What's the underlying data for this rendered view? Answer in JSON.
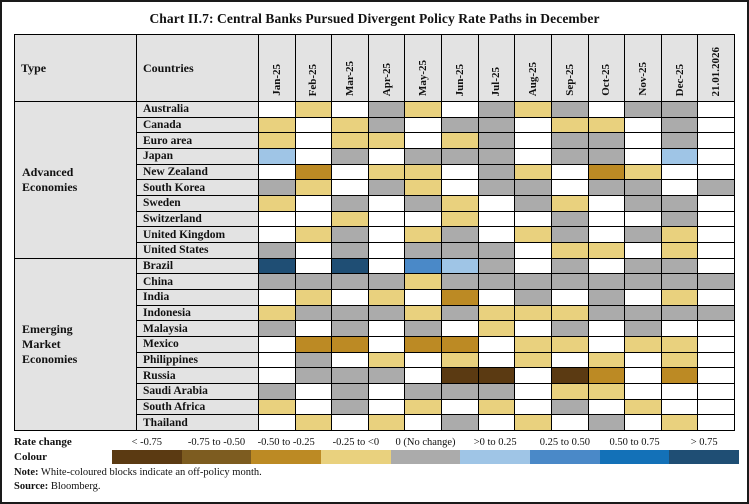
{
  "title": "Chart II.7: Central Banks Pursued Divergent Policy Rate Paths in December",
  "table": {
    "corner_headers": [
      "Type",
      "Countries"
    ]
  },
  "chart_data": {
    "type": "heatmap",
    "title": "Chart II.7: Central Banks Pursued Divergent Policy Rate Paths in December",
    "columns": [
      "Jan-25",
      "Feb-25",
      "Mar-25",
      "Apr-25",
      "May-25",
      "Jun-25",
      "Jul-25",
      "Aug-25",
      "Sep-25",
      "Oct-25",
      "Nov-25",
      "Dec-25",
      "21.01.2026"
    ],
    "cell_code_meaning": {
      "off": "off-policy month (white)",
      "0": "0 (No change)",
      "-1": "-0.25 to <0",
      "-2": "-0.50 to -0.25",
      "-3": "-0.75 to -0.50",
      "-4": "< -0.75",
      "+1": ">0 to 0.25",
      "+2": "0.25 to 0.50",
      "+3": "0.50 to 0.75",
      "+4": "> 0.75"
    },
    "legend_bins": [
      {
        "code": "-4",
        "label": "< -0.75",
        "color": "#5B3A12"
      },
      {
        "code": "-3",
        "label": "-0.75 to -0.50",
        "color": "#7D5C20"
      },
      {
        "code": "-2",
        "label": "-0.50 to -0.25",
        "color": "#BC8A24"
      },
      {
        "code": "-1",
        "label": "-0.25 to <0",
        "color": "#E9D17E"
      },
      {
        "code": "0",
        "label": "0 (No change)",
        "color": "#ABABAB"
      },
      {
        "code": "+1",
        "label": ">0 to 0.25",
        "color": "#9FC5E6"
      },
      {
        "code": "+2",
        "label": "0.25 to 0.50",
        "color": "#4A89C8"
      },
      {
        "code": "+3",
        "label": "0.50 to 0.75",
        "color": "#1371B8"
      },
      {
        "code": "+4",
        "label": "> 0.75",
        "color": "#1F4E74"
      }
    ],
    "off_policy_color": "#FFFFFF",
    "groups": [
      {
        "label": "Advanced Economies",
        "rows": [
          {
            "country": "Australia",
            "cells": [
              "off",
              "-1",
              "off",
              "0",
              "-1",
              "off",
              "0",
              "-1",
              "0",
              "off",
              "0",
              "0",
              "off"
            ]
          },
          {
            "country": "Canada",
            "cells": [
              "-1",
              "off",
              "-1",
              "0",
              "off",
              "0",
              "0",
              "off",
              "-1",
              "-1",
              "off",
              "0",
              "off"
            ]
          },
          {
            "country": "Euro area",
            "cells": [
              "-1",
              "off",
              "-1",
              "-1",
              "off",
              "-1",
              "0",
              "off",
              "0",
              "0",
              "off",
              "0",
              "off"
            ]
          },
          {
            "country": "Japan",
            "cells": [
              "+1",
              "off",
              "0",
              "off",
              "0",
              "0",
              "0",
              "off",
              "0",
              "0",
              "off",
              "+1",
              "off"
            ]
          },
          {
            "country": "New Zealand",
            "cells": [
              "off",
              "-2",
              "off",
              "-1",
              "-1",
              "off",
              "0",
              "-1",
              "off",
              "-2",
              "-1",
              "off",
              "off"
            ]
          },
          {
            "country": "South Korea",
            "cells": [
              "0",
              "-1",
              "off",
              "0",
              "-1",
              "off",
              "0",
              "0",
              "off",
              "0",
              "0",
              "off",
              "0"
            ]
          },
          {
            "country": "Sweden",
            "cells": [
              "-1",
              "off",
              "0",
              "off",
              "0",
              "-1",
              "off",
              "0",
              "-1",
              "off",
              "0",
              "0",
              "off"
            ]
          },
          {
            "country": "Switzerland",
            "cells": [
              "off",
              "off",
              "-1",
              "off",
              "off",
              "-1",
              "off",
              "off",
              "0",
              "off",
              "off",
              "0",
              "off"
            ]
          },
          {
            "country": "United Kingdom",
            "cells": [
              "off",
              "-1",
              "0",
              "off",
              "-1",
              "0",
              "off",
              "-1",
              "0",
              "off",
              "0",
              "-1",
              "off"
            ]
          },
          {
            "country": "United States",
            "cells": [
              "0",
              "off",
              "0",
              "off",
              "0",
              "0",
              "0",
              "off",
              "-1",
              "-1",
              "off",
              "-1",
              "off"
            ]
          }
        ]
      },
      {
        "label": "Emerging Market Economies",
        "rows": [
          {
            "country": "Brazil",
            "cells": [
              "+4",
              "off",
              "+4",
              "off",
              "+2",
              "+1",
              "0",
              "off",
              "0",
              "off",
              "0",
              "0",
              "off"
            ]
          },
          {
            "country": "China",
            "cells": [
              "0",
              "0",
              "0",
              "0",
              "-1",
              "0",
              "0",
              "0",
              "0",
              "0",
              "0",
              "0",
              "0"
            ]
          },
          {
            "country": "India",
            "cells": [
              "off",
              "-1",
              "off",
              "-1",
              "off",
              "-2",
              "off",
              "0",
              "off",
              "0",
              "off",
              "-1",
              "off"
            ]
          },
          {
            "country": "Indonesia",
            "cells": [
              "-1",
              "0",
              "0",
              "0",
              "-1",
              "0",
              "-1",
              "-1",
              "-1",
              "0",
              "0",
              "0",
              "0"
            ]
          },
          {
            "country": "Malaysia",
            "cells": [
              "0",
              "off",
              "0",
              "off",
              "0",
              "off",
              "-1",
              "off",
              "0",
              "off",
              "0",
              "off",
              "off"
            ]
          },
          {
            "country": "Mexico",
            "cells": [
              "off",
              "-2",
              "-2",
              "off",
              "-2",
              "-2",
              "off",
              "-1",
              "-1",
              "off",
              "-1",
              "-1",
              "off"
            ]
          },
          {
            "country": "Philippines",
            "cells": [
              "off",
              "0",
              "off",
              "-1",
              "off",
              "-1",
              "off",
              "-1",
              "off",
              "-1",
              "off",
              "-1",
              "off"
            ]
          },
          {
            "country": "Russia",
            "cells": [
              "off",
              "0",
              "0",
              "0",
              "off",
              "-4",
              "-4",
              "off",
              "-4",
              "-2",
              "off",
              "-2",
              "off"
            ]
          },
          {
            "country": "Saudi Arabia",
            "cells": [
              "0",
              "off",
              "0",
              "off",
              "0",
              "0",
              "0",
              "off",
              "-1",
              "-1",
              "off",
              "off",
              "off"
            ]
          },
          {
            "country": "South Africa",
            "cells": [
              "-1",
              "off",
              "0",
              "off",
              "-1",
              "off",
              "-1",
              "off",
              "0",
              "off",
              "-1",
              "off",
              "off"
            ]
          },
          {
            "country": "Thailand",
            "cells": [
              "off",
              "-1",
              "off",
              "-1",
              "off",
              "0",
              "off",
              "-1",
              "off",
              "0",
              "off",
              "-1",
              "off"
            ]
          }
        ]
      }
    ]
  },
  "legend": {
    "rate_change_label": "Rate change",
    "colour_label": "Colour"
  },
  "note": {
    "prefix": "Note:",
    "text": " White-coloured blocks indicate an off-policy month."
  },
  "source": {
    "prefix": "Source:",
    "text": " Bloomberg."
  }
}
